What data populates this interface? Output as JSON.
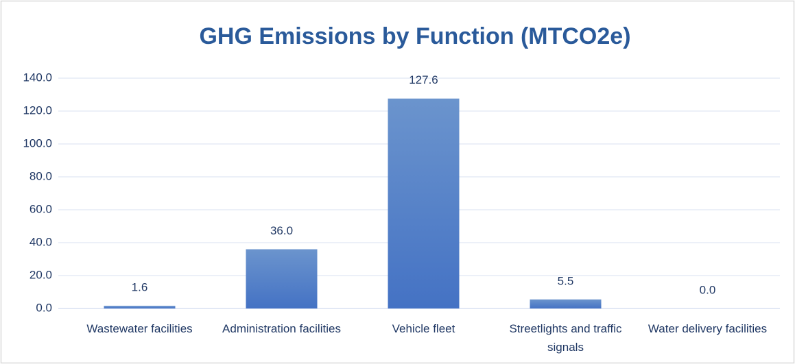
{
  "chart_data": {
    "type": "bar",
    "title": "GHG Emissions by Function (MTCO2e)",
    "categories": [
      "Wastewater facilities",
      "Administration facilities",
      "Vehicle fleet",
      "Streetlights and traffic signals",
      "Water delivery facilities"
    ],
    "values": [
      1.6,
      36.0,
      127.6,
      5.5,
      0.0
    ],
    "value_labels": [
      "1.6",
      "36.0",
      "127.6",
      "5.5",
      "0.0"
    ],
    "color": "#4472c4",
    "ylim": [
      0,
      140
    ],
    "yticks": [
      {
        "value": 0,
        "label": "0.0"
      },
      {
        "value": 20,
        "label": "20.0"
      },
      {
        "value": 40,
        "label": "40.0"
      },
      {
        "value": 60,
        "label": "60.0"
      },
      {
        "value": 80,
        "label": "80.0"
      },
      {
        "value": 100,
        "label": "100.0"
      },
      {
        "value": 120,
        "label": "120.0"
      },
      {
        "value": 140,
        "label": "140.0"
      }
    ],
    "grid": true
  }
}
